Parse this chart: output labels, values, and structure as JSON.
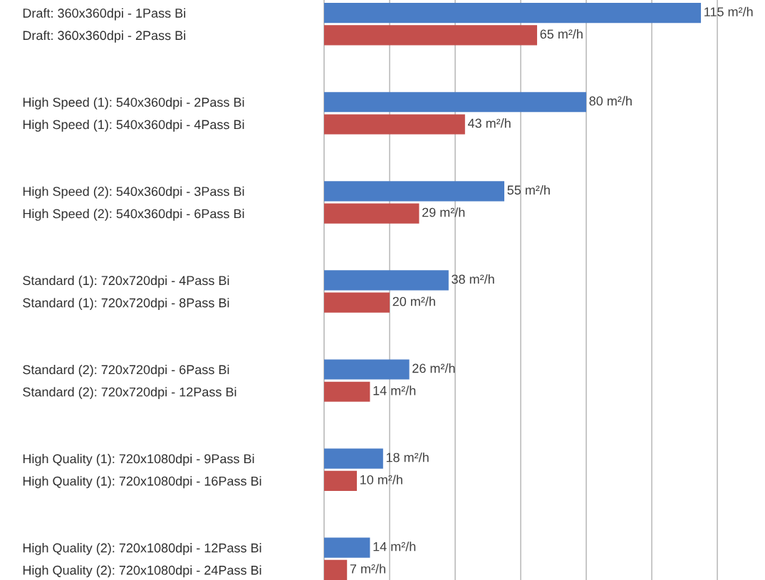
{
  "chart_data": {
    "type": "bar",
    "orientation": "horizontal",
    "categories": [
      "Draft: 360x360dpi - 1Pass Bi",
      "Draft: 360x360dpi - 2Pass Bi",
      null,
      null,
      "High Speed (1): 540x360dpi - 2Pass Bi",
      "High Speed (1): 540x360dpi - 4Pass Bi",
      null,
      null,
      "High Speed (2): 540x360dpi - 3Pass Bi",
      "High Speed (2): 540x360dpi - 6Pass Bi",
      null,
      null,
      "Standard (1): 720x720dpi - 4Pass Bi",
      "Standard (1): 720x720dpi - 8Pass Bi",
      null,
      null,
      "Standard (2): 720x720dpi - 6Pass Bi",
      "Standard (2): 720x720dpi - 12Pass Bi",
      null,
      null,
      "High Quality (1): 720x1080dpi - 9Pass Bi",
      "High Quality (1): 720x1080dpi - 16Pass Bi",
      null,
      null,
      "High Quality (2): 720x1080dpi - 12Pass Bi",
      "High Quality (2): 720x1080dpi - 24Pass Bi"
    ],
    "values": [
      115,
      65,
      null,
      null,
      80,
      43,
      null,
      null,
      55,
      29,
      null,
      null,
      38,
      20,
      null,
      null,
      26,
      14,
      null,
      null,
      18,
      10,
      null,
      null,
      14,
      7
    ],
    "colors": [
      "#4a7dc6",
      "#c44f4c",
      null,
      null,
      "#4a7dc6",
      "#c44f4c",
      null,
      null,
      "#4a7dc6",
      "#c44f4c",
      null,
      null,
      "#4a7dc6",
      "#c44f4c",
      null,
      null,
      "#4a7dc6",
      "#c44f4c",
      null,
      null,
      "#4a7dc6",
      "#c44f4c",
      null,
      null,
      "#4a7dc6",
      "#c44f4c"
    ],
    "value_labels": [
      "115 m²/h",
      "65 m²/h",
      null,
      null,
      "80 m²/h",
      "43 m²/h",
      null,
      null,
      "55 m²/h",
      "29 m²/h",
      null,
      null,
      "38 m²/h",
      "20 m²/h",
      null,
      null,
      "26 m²/h",
      "14 m²/h",
      null,
      null,
      "18 m²/h",
      "10 m²/h",
      null,
      null,
      "14 m²/h",
      "7 m²/h"
    ],
    "xticks": [
      {
        "value": 20,
        "label": null
      },
      {
        "value": 40,
        "label": null
      },
      {
        "value": 60,
        "label": null
      },
      {
        "value": 80,
        "label": null
      },
      {
        "value": 100,
        "label": null
      },
      {
        "value": 120,
        "label": null
      }
    ],
    "grid": "x",
    "tick_labels": "y"
  }
}
